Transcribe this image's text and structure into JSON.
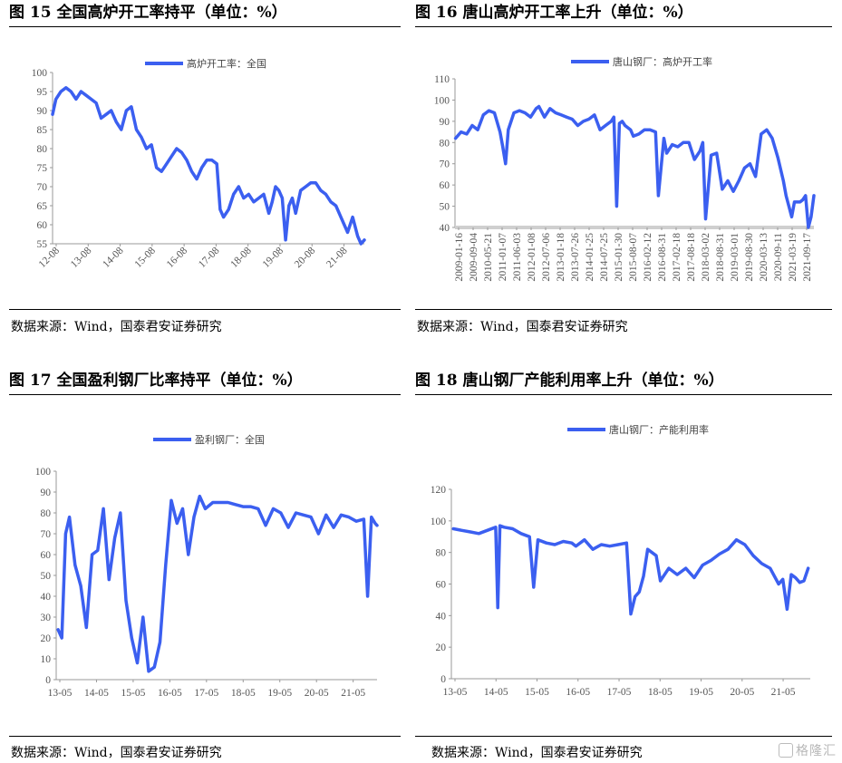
{
  "watermark": "格隆汇",
  "panels": [
    {
      "title": "图 15 全国高炉开工率持平（单位：%）",
      "source": "数据来源：Wind，国泰君安证券研究",
      "legend": "高炉开工率：全国",
      "color": "#3b5ff0"
    },
    {
      "title": "图 16 唐山高炉开工率上升（单位：%）",
      "source": "数据来源：Wind，国泰君安证券研究",
      "legend": "唐山钢厂：高炉开工率",
      "color": "#3b5ff0"
    },
    {
      "title": "图 17 全国盈利钢厂比率持平（单位：%）",
      "source": "数据来源：Wind，国泰君安证券研究",
      "legend": "盈利钢厂：全国",
      "color": "#3b5ff0"
    },
    {
      "title": "图 18 唐山钢厂产能利用率上升（单位：%）",
      "source": "数据来源：Wind，国泰君安证券研究",
      "legend": "唐山钢厂：产能利用率",
      "color": "#3b5ff0"
    }
  ],
  "chart_data": [
    {
      "type": "line",
      "title": "图 15 全国高炉开工率持平（单位：%）",
      "xlabel": "",
      "ylabel": "",
      "x_ticks": [
        "12-08",
        "13-08",
        "14-08",
        "15-08",
        "16-08",
        "17-08",
        "18-08",
        "19-08",
        "20-08",
        "21-08"
      ],
      "x_range": [
        2012.55,
        2021.85
      ],
      "ylim": [
        55,
        100
      ],
      "y_ticks": [
        55,
        60,
        65,
        70,
        75,
        80,
        85,
        90,
        95,
        100
      ],
      "series": [
        {
          "name": "高炉开工率：全国",
          "x": [
            2012.55,
            2012.65,
            2012.8,
            2012.95,
            2013.1,
            2013.25,
            2013.4,
            2013.55,
            2013.7,
            2013.85,
            2014.0,
            2014.15,
            2014.3,
            2014.45,
            2014.6,
            2014.75,
            2014.9,
            2015.05,
            2015.2,
            2015.35,
            2015.5,
            2015.65,
            2015.8,
            2015.95,
            2016.1,
            2016.25,
            2016.4,
            2016.55,
            2016.7,
            2016.85,
            2017.0,
            2017.15,
            2017.3,
            2017.45,
            2017.55,
            2017.65,
            2017.8,
            2017.95,
            2018.1,
            2018.25,
            2018.4,
            2018.55,
            2018.7,
            2018.85,
            2019.0,
            2019.1,
            2019.2,
            2019.3,
            2019.4,
            2019.5,
            2019.6,
            2019.7,
            2019.8,
            2019.95,
            2020.1,
            2020.25,
            2020.4,
            2020.55,
            2020.7,
            2020.85,
            2021.0,
            2021.15,
            2021.25,
            2021.35,
            2021.5,
            2021.65,
            2021.75,
            2021.85
          ],
          "y": [
            89,
            93,
            95,
            96,
            95,
            93,
            95,
            94,
            93,
            92,
            88,
            89,
            90,
            87,
            85,
            90,
            91,
            85,
            83,
            80,
            81,
            75,
            74,
            76,
            78,
            80,
            79,
            77,
            74,
            72,
            75,
            77,
            77,
            76,
            64,
            62,
            64,
            68,
            70,
            67,
            68,
            66,
            67,
            68,
            63,
            66,
            70,
            69,
            67,
            56,
            65,
            67,
            63,
            69,
            70,
            71,
            71,
            69,
            68,
            66,
            65,
            62,
            60,
            58,
            62,
            57,
            55,
            56
          ]
        }
      ]
    },
    {
      "type": "line",
      "title": "图 16 唐山高炉开工率上升（单位：%）",
      "xlabel": "",
      "ylabel": "",
      "x_ticks": [
        "2009-01-16",
        "2009-09-04",
        "2010-05-21",
        "2011-01-07",
        "2011-06-03",
        "2012-01-08",
        "2012-07-06",
        "2013-01-18",
        "2013-07-26",
        "2014-01-25",
        "2014-07-25",
        "2015-01-30",
        "2015-08-07",
        "2016-02-12",
        "2016-08-31",
        "2017-02-18",
        "2017-08-18",
        "2018-03-02",
        "2018-08-31",
        "2019-03-01",
        "2019-08-30",
        "2020-03-13",
        "2020-09-11",
        "2021-03-19",
        "2021-09-17"
      ],
      "x_range": [
        2008.98,
        2021.9
      ],
      "ylim": [
        40,
        110
      ],
      "y_ticks": [
        40,
        50,
        60,
        70,
        80,
        90,
        100,
        110
      ],
      "series": [
        {
          "name": "唐山钢厂：高炉开工率",
          "x": [
            2009.0,
            2009.2,
            2009.4,
            2009.6,
            2009.8,
            2010.0,
            2010.2,
            2010.4,
            2010.6,
            2010.7,
            2010.8,
            2010.9,
            2011.0,
            2011.1,
            2011.3,
            2011.5,
            2011.7,
            2011.9,
            2012.0,
            2012.2,
            2012.4,
            2012.6,
            2012.8,
            2013.0,
            2013.2,
            2013.4,
            2013.6,
            2013.8,
            2014.0,
            2014.2,
            2014.4,
            2014.6,
            2014.7,
            2014.8,
            2014.9,
            2015.0,
            2015.1,
            2015.3,
            2015.4,
            2015.6,
            2015.8,
            2016.0,
            2016.2,
            2016.3,
            2016.5,
            2016.6,
            2016.8,
            2017.0,
            2017.2,
            2017.4,
            2017.6,
            2017.8,
            2017.9,
            2018.0,
            2018.2,
            2018.4,
            2018.6,
            2018.8,
            2019.0,
            2019.2,
            2019.4,
            2019.6,
            2019.8,
            2020.0,
            2020.2,
            2020.4,
            2020.6,
            2020.8,
            2020.9,
            2021.0,
            2021.1,
            2021.2,
            2021.4,
            2021.5,
            2021.6,
            2021.7,
            2021.8,
            2021.9
          ],
          "y": [
            82,
            85,
            84,
            88,
            86,
            93,
            95,
            94,
            85,
            78,
            70,
            86,
            90,
            94,
            95,
            94,
            92,
            96,
            97,
            92,
            96,
            94,
            93,
            92,
            91,
            88,
            90,
            91,
            93,
            86,
            88,
            90,
            92,
            50,
            89,
            90,
            88,
            86,
            83,
            84,
            86,
            86,
            85,
            55,
            82,
            75,
            79,
            78,
            80,
            80,
            72,
            76,
            80,
            44,
            74,
            75,
            58,
            62,
            57,
            62,
            68,
            70,
            64,
            84,
            86,
            82,
            73,
            62,
            55,
            50,
            45,
            52,
            52,
            53,
            55,
            40,
            45,
            55
          ]
        }
      ]
    },
    {
      "type": "line",
      "title": "图 17 全国盈利钢厂比率持平（单位：%）",
      "xlabel": "",
      "ylabel": "",
      "x_ticks": [
        "13-05",
        "14-05",
        "15-05",
        "16-05",
        "17-05",
        "18-05",
        "19-05",
        "20-05",
        "21-05"
      ],
      "x_range": [
        2013.35,
        2021.85
      ],
      "ylim": [
        0,
        100
      ],
      "y_ticks": [
        0,
        10,
        20,
        30,
        40,
        50,
        60,
        70,
        80,
        90,
        100
      ],
      "series": [
        {
          "name": "盈利钢厂：全国",
          "x": [
            2013.4,
            2013.5,
            2013.6,
            2013.7,
            2013.85,
            2014.0,
            2014.15,
            2014.3,
            2014.45,
            2014.6,
            2014.75,
            2014.9,
            2015.05,
            2015.2,
            2015.35,
            2015.5,
            2015.65,
            2015.8,
            2015.95,
            2016.1,
            2016.25,
            2016.4,
            2016.55,
            2016.7,
            2016.85,
            2017.0,
            2017.15,
            2017.3,
            2017.5,
            2017.7,
            2017.9,
            2018.1,
            2018.3,
            2018.5,
            2018.7,
            2018.9,
            2019.1,
            2019.3,
            2019.5,
            2019.7,
            2019.9,
            2020.1,
            2020.3,
            2020.5,
            2020.7,
            2020.9,
            2021.1,
            2021.3,
            2021.5,
            2021.6,
            2021.7,
            2021.8,
            2021.85
          ],
          "y": [
            24,
            20,
            70,
            78,
            55,
            45,
            25,
            60,
            62,
            82,
            48,
            68,
            80,
            38,
            20,
            8,
            30,
            4,
            6,
            18,
            55,
            86,
            75,
            82,
            60,
            78,
            88,
            82,
            85,
            85,
            85,
            84,
            83,
            83,
            82,
            74,
            82,
            80,
            73,
            80,
            79,
            78,
            70,
            79,
            73,
            79,
            78,
            76,
            77,
            40,
            78,
            75,
            74
          ]
        }
      ]
    },
    {
      "type": "line",
      "title": "图 18 唐山钢厂产能利用率上升（单位：%）",
      "xlabel": "",
      "ylabel": "",
      "x_ticks": [
        "13-05",
        "14-05",
        "15-05",
        "16-05",
        "17-05",
        "18-05",
        "19-05",
        "20-05",
        "21-05"
      ],
      "x_range": [
        2013.35,
        2021.85
      ],
      "ylim": [
        0,
        120
      ],
      "y_ticks": [
        0,
        20,
        40,
        60,
        80,
        100,
        120
      ],
      "series": [
        {
          "name": "唐山钢厂：产能利用率",
          "x": [
            2013.4,
            2013.6,
            2013.8,
            2014.0,
            2014.2,
            2014.4,
            2014.45,
            2014.5,
            2014.6,
            2014.8,
            2015.0,
            2015.2,
            2015.3,
            2015.4,
            2015.6,
            2015.8,
            2016.0,
            2016.2,
            2016.3,
            2016.5,
            2016.7,
            2016.9,
            2017.1,
            2017.3,
            2017.5,
            2017.6,
            2017.7,
            2017.8,
            2017.9,
            2018.0,
            2018.2,
            2018.3,
            2018.5,
            2018.7,
            2018.9,
            2019.1,
            2019.3,
            2019.5,
            2019.7,
            2019.9,
            2020.1,
            2020.3,
            2020.5,
            2020.7,
            2020.9,
            2021.1,
            2021.2,
            2021.3,
            2021.4,
            2021.5,
            2021.6,
            2021.7,
            2021.8
          ],
          "y": [
            95,
            94,
            93,
            92,
            94,
            96,
            45,
            97,
            96,
            95,
            92,
            90,
            58,
            88,
            86,
            85,
            87,
            86,
            84,
            88,
            82,
            85,
            84,
            85,
            86,
            41,
            52,
            55,
            65,
            82,
            78,
            62,
            70,
            66,
            70,
            64,
            72,
            75,
            79,
            82,
            88,
            85,
            78,
            73,
            70,
            60,
            63,
            44,
            66,
            64,
            61,
            62,
            70
          ]
        }
      ]
    }
  ]
}
